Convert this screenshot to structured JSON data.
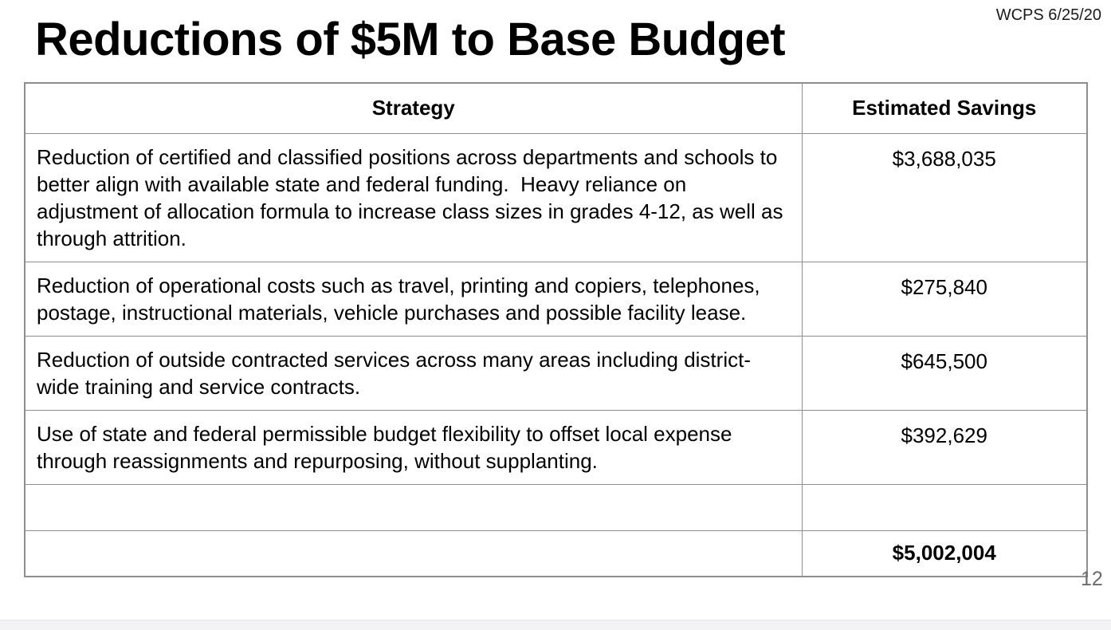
{
  "slide": {
    "watermark": "WCPS 6/25/20",
    "title": "Reductions of $5M to Base Budget",
    "page_number": "12"
  },
  "table": {
    "headers": {
      "strategy": "Strategy",
      "savings": "Estimated Savings"
    },
    "rows": [
      {
        "strategy": "Reduction of certified and classified positions across departments and schools to better align with available state and federal funding.  Heavy reliance on adjustment of allocation formula to increase class sizes in grades 4-12, as well as through attrition.",
        "savings": "$3,688,035"
      },
      {
        "strategy": "Reduction of operational costs such as travel, printing and copiers, telephones, postage, instructional materials, vehicle purchases and possible facility lease.",
        "savings": "$275,840"
      },
      {
        "strategy": "Reduction of outside contracted services across many areas including district-wide training and service contracts.",
        "savings": "$645,500"
      },
      {
        "strategy": "Use of state and federal permissible budget flexibility to offset local expense through reassignments and repurposing, without supplanting.",
        "savings": "$392,629"
      },
      {
        "strategy": "",
        "savings": ""
      }
    ],
    "total": {
      "strategy": "",
      "savings": "$5,002,004"
    }
  },
  "colors": {
    "background": "#ffffff",
    "text": "#000000",
    "table_border": "#8e8e8e",
    "page_number": "#6b6b6b",
    "bottom_strip": "#f3f3f5"
  }
}
